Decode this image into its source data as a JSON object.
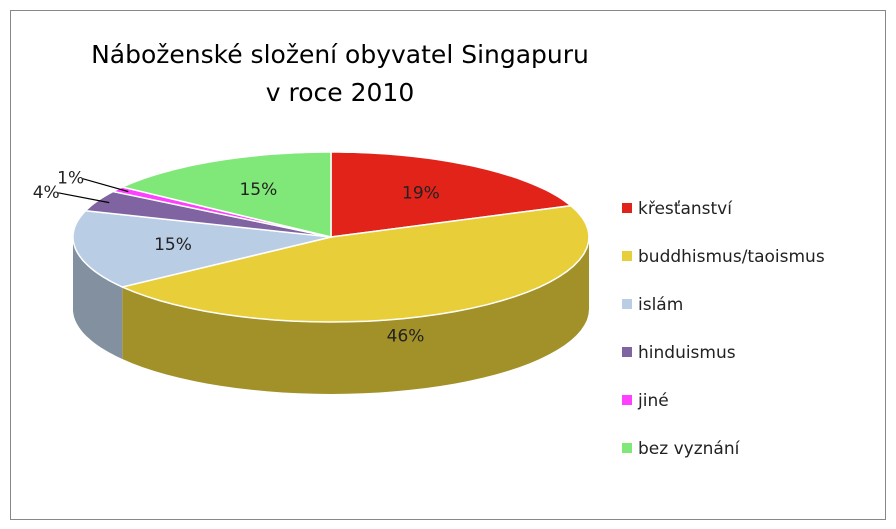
{
  "chart_data": {
    "type": "pie",
    "title": "Náboženské složení obyvatel Singapuru v roce 2010",
    "categories": [
      "křesťanství",
      "buddhismus/taoismus",
      "islám",
      "hinduismus",
      "jiné",
      "bez vyznání"
    ],
    "values": [
      19,
      46,
      15,
      4,
      1,
      15
    ],
    "value_labels": [
      "19%",
      "46%",
      "15%",
      "4%",
      "1%",
      "15%"
    ],
    "colors": [
      "#e2231a",
      "#e8cf3a",
      "#b9cde5",
      "#8064a2",
      "#ff40ff",
      "#80e878"
    ],
    "legend": "right"
  }
}
